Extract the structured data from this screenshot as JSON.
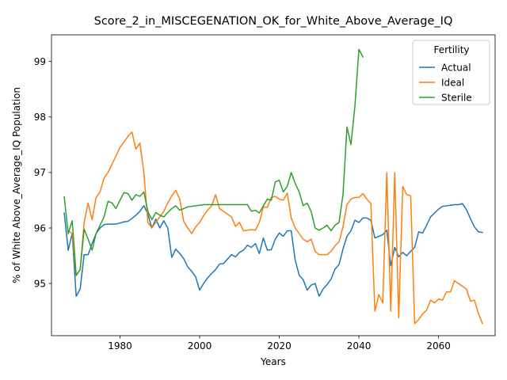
{
  "chart_data": {
    "type": "line",
    "title": "Score_2_in_MISCEGENATION_OK_for_White_Above_Average_IQ",
    "xlabel": "Years",
    "ylabel": "% of White Above_Average_IQ Population",
    "xlim": [
      1962.8,
      2074.2
    ],
    "ylim": [
      94.06,
      99.48
    ],
    "xticks": [
      1980,
      2000,
      2020,
      2040,
      2060
    ],
    "yticks": [
      95,
      96,
      97,
      98,
      99
    ],
    "grid": false,
    "legend": {
      "title": "Fertility",
      "placement": "top-right"
    },
    "series": [
      {
        "name": "Actual",
        "color": "#1f77b4",
        "points": [
          [
            1966,
            96.27
          ],
          [
            1967,
            95.6
          ],
          [
            1968,
            95.9
          ],
          [
            1969,
            94.77
          ],
          [
            1970,
            94.9
          ],
          [
            1971,
            95.52
          ],
          [
            1972,
            95.52
          ],
          [
            1973,
            95.72
          ],
          [
            1974,
            95.9
          ],
          [
            1975,
            96.0
          ],
          [
            1976,
            96.06
          ],
          [
            1977,
            96.07
          ],
          [
            1978,
            96.07
          ],
          [
            1979,
            96.07
          ],
          [
            1980,
            96.09
          ],
          [
            1981,
            96.11
          ],
          [
            1982,
            96.12
          ],
          [
            1983,
            96.17
          ],
          [
            1984,
            96.23
          ],
          [
            1985,
            96.3
          ],
          [
            1986,
            96.4
          ],
          [
            1987,
            96.25
          ],
          [
            1988,
            96.0
          ],
          [
            1989,
            96.16
          ],
          [
            1990,
            96.0
          ],
          [
            1991,
            96.13
          ],
          [
            1992,
            96.0
          ],
          [
            1993,
            95.47
          ],
          [
            1994,
            95.62
          ],
          [
            1995,
            95.54
          ],
          [
            1996,
            95.45
          ],
          [
            1997,
            95.3
          ],
          [
            1998,
            95.22
          ],
          [
            1999,
            95.12
          ],
          [
            2000,
            94.88
          ],
          [
            2001,
            95.0
          ],
          [
            2002,
            95.1
          ],
          [
            2003,
            95.18
          ],
          [
            2004,
            95.25
          ],
          [
            2005,
            95.35
          ],
          [
            2006,
            95.36
          ],
          [
            2007,
            95.44
          ],
          [
            2008,
            95.52
          ],
          [
            2009,
            95.48
          ],
          [
            2010,
            95.56
          ],
          [
            2011,
            95.6
          ],
          [
            2012,
            95.69
          ],
          [
            2013,
            95.65
          ],
          [
            2014,
            95.72
          ],
          [
            2015,
            95.54
          ],
          [
            2016,
            95.82
          ],
          [
            2017,
            95.6
          ],
          [
            2018,
            95.61
          ],
          [
            2019,
            95.8
          ],
          [
            2020,
            95.91
          ],
          [
            2021,
            95.85
          ],
          [
            2022,
            95.95
          ],
          [
            2023,
            95.95
          ],
          [
            2024,
            95.42
          ],
          [
            2025,
            95.15
          ],
          [
            2026,
            95.07
          ],
          [
            2027,
            94.88
          ],
          [
            2028,
            94.97
          ],
          [
            2029,
            95.0
          ],
          [
            2030,
            94.77
          ],
          [
            2031,
            94.9
          ],
          [
            2032,
            94.98
          ],
          [
            2033,
            95.08
          ],
          [
            2034,
            95.26
          ],
          [
            2035,
            95.34
          ],
          [
            2036,
            95.62
          ],
          [
            2037,
            95.85
          ],
          [
            2038,
            95.95
          ],
          [
            2039,
            96.14
          ],
          [
            2040,
            96.1
          ],
          [
            2041,
            96.18
          ],
          [
            2042,
            96.18
          ],
          [
            2043,
            96.14
          ],
          [
            2044,
            95.82
          ],
          [
            2045,
            95.85
          ],
          [
            2046,
            95.88
          ],
          [
            2047,
            95.96
          ],
          [
            2048,
            95.32
          ],
          [
            2049,
            95.65
          ],
          [
            2050,
            95.48
          ],
          [
            2051,
            95.56
          ],
          [
            2052,
            95.5
          ],
          [
            2053,
            95.58
          ],
          [
            2054,
            95.65
          ],
          [
            2055,
            95.93
          ],
          [
            2056,
            95.91
          ],
          [
            2057,
            96.05
          ],
          [
            2058,
            96.2
          ],
          [
            2059,
            96.27
          ],
          [
            2060,
            96.34
          ],
          [
            2061,
            96.39
          ],
          [
            2062,
            96.4
          ],
          [
            2063,
            96.41
          ],
          [
            2064,
            96.42
          ],
          [
            2065,
            96.42
          ],
          [
            2066,
            96.44
          ],
          [
            2067,
            96.33
          ],
          [
            2068,
            96.17
          ],
          [
            2069,
            96.02
          ],
          [
            2070,
            95.93
          ],
          [
            2071,
            95.92
          ]
        ]
      },
      {
        "name": "Ideal",
        "color": "#ff7f0e",
        "points": [
          [
            1967,
            95.95
          ],
          [
            1968,
            95.9
          ],
          [
            1969,
            95.14
          ],
          [
            1970,
            95.25
          ],
          [
            1971,
            96.1
          ],
          [
            1972,
            96.45
          ],
          [
            1973,
            96.15
          ],
          [
            1974,
            96.55
          ],
          [
            1975,
            96.65
          ],
          [
            1976,
            96.9
          ],
          [
            1977,
            97.0
          ],
          [
            1978,
            97.15
          ],
          [
            1979,
            97.3
          ],
          [
            1980,
            97.45
          ],
          [
            1981,
            97.55
          ],
          [
            1982,
            97.65
          ],
          [
            1983,
            97.73
          ],
          [
            1984,
            97.42
          ],
          [
            1985,
            97.53
          ],
          [
            1986,
            97.0
          ],
          [
            1987,
            96.1
          ],
          [
            1988,
            96.0
          ],
          [
            1989,
            96.1
          ],
          [
            1990,
            96.2
          ],
          [
            1991,
            96.3
          ],
          [
            1992,
            96.45
          ],
          [
            1993,
            96.58
          ],
          [
            1994,
            96.68
          ],
          [
            1995,
            96.52
          ],
          [
            1996,
            96.12
          ],
          [
            1997,
            96.0
          ],
          [
            1998,
            95.9
          ],
          [
            1999,
            96.02
          ],
          [
            2000,
            96.1
          ],
          [
            2001,
            96.22
          ],
          [
            2002,
            96.32
          ],
          [
            2003,
            96.4
          ],
          [
            2004,
            96.6
          ],
          [
            2005,
            96.35
          ],
          [
            2006,
            96.3
          ],
          [
            2007,
            96.25
          ],
          [
            2008,
            96.2
          ],
          [
            2009,
            96.03
          ],
          [
            2010,
            96.1
          ],
          [
            2011,
            95.95
          ],
          [
            2012,
            95.96
          ],
          [
            2013,
            95.97
          ],
          [
            2014,
            95.96
          ],
          [
            2015,
            96.1
          ],
          [
            2016,
            96.38
          ],
          [
            2017,
            96.37
          ],
          [
            2018,
            96.55
          ],
          [
            2019,
            96.57
          ],
          [
            2020,
            96.52
          ],
          [
            2021,
            96.5
          ],
          [
            2022,
            96.63
          ],
          [
            2023,
            96.18
          ],
          [
            2024,
            96.0
          ],
          [
            2025,
            95.9
          ],
          [
            2026,
            95.8
          ],
          [
            2027,
            95.75
          ],
          [
            2028,
            95.8
          ],
          [
            2029,
            95.58
          ],
          [
            2030,
            95.52
          ],
          [
            2031,
            95.52
          ],
          [
            2032,
            95.52
          ],
          [
            2033,
            95.58
          ],
          [
            2034,
            95.68
          ],
          [
            2035,
            95.75
          ],
          [
            2036,
            96.02
          ],
          [
            2037,
            96.42
          ],
          [
            2038,
            96.52
          ],
          [
            2039,
            96.55
          ],
          [
            2040,
            96.55
          ],
          [
            2041,
            96.62
          ],
          [
            2042,
            96.52
          ],
          [
            2043,
            96.44
          ],
          [
            2044,
            94.5
          ],
          [
            2045,
            94.8
          ],
          [
            2046,
            94.65
          ],
          [
            2047,
            97.0
          ],
          [
            2048,
            94.5
          ],
          [
            2049,
            97.0
          ],
          [
            2050,
            94.38
          ],
          [
            2051,
            96.75
          ],
          [
            2052,
            96.6
          ],
          [
            2053,
            96.58
          ],
          [
            2054,
            94.28
          ],
          [
            2055,
            94.35
          ],
          [
            2056,
            94.45
          ],
          [
            2057,
            94.52
          ],
          [
            2058,
            94.7
          ],
          [
            2059,
            94.65
          ],
          [
            2060,
            94.72
          ],
          [
            2061,
            94.7
          ],
          [
            2062,
            94.85
          ],
          [
            2063,
            94.85
          ],
          [
            2064,
            95.05
          ],
          [
            2065,
            95.0
          ],
          [
            2066,
            94.95
          ],
          [
            2067,
            94.9
          ],
          [
            2068,
            94.68
          ],
          [
            2069,
            94.7
          ],
          [
            2070,
            94.46
          ],
          [
            2071,
            94.28
          ]
        ]
      },
      {
        "name": "Sterile",
        "color": "#2ca02c",
        "points": [
          [
            1966,
            96.56
          ],
          [
            1967,
            95.9
          ],
          [
            1968,
            96.13
          ],
          [
            1969,
            95.15
          ],
          [
            1970,
            95.25
          ],
          [
            1971,
            95.98
          ],
          [
            1972,
            95.8
          ],
          [
            1973,
            95.6
          ],
          [
            1974,
            95.9
          ],
          [
            1975,
            96.05
          ],
          [
            1976,
            96.2
          ],
          [
            1977,
            96.48
          ],
          [
            1978,
            96.45
          ],
          [
            1979,
            96.35
          ],
          [
            1980,
            96.5
          ],
          [
            1981,
            96.64
          ],
          [
            1982,
            96.62
          ],
          [
            1983,
            96.5
          ],
          [
            1984,
            96.6
          ],
          [
            1985,
            96.57
          ],
          [
            1986,
            96.65
          ],
          [
            1987,
            96.3
          ],
          [
            1988,
            96.15
          ],
          [
            1989,
            96.28
          ],
          [
            1990,
            96.23
          ],
          [
            1991,
            96.2
          ],
          [
            1992,
            96.28
          ],
          [
            1993,
            96.35
          ],
          [
            1994,
            96.4
          ],
          [
            1995,
            96.32
          ],
          [
            1996,
            96.35
          ],
          [
            1997,
            96.38
          ],
          [
            1998,
            96.39
          ],
          [
            1999,
            96.4
          ],
          [
            2000,
            96.41
          ],
          [
            2001,
            96.42
          ],
          [
            2002,
            96.42
          ],
          [
            2003,
            96.42
          ],
          [
            2004,
            96.42
          ],
          [
            2005,
            96.42
          ],
          [
            2006,
            96.42
          ],
          [
            2007,
            96.42
          ],
          [
            2008,
            96.42
          ],
          [
            2009,
            96.42
          ],
          [
            2010,
            96.42
          ],
          [
            2011,
            96.42
          ],
          [
            2012,
            96.42
          ],
          [
            2013,
            96.3
          ],
          [
            2014,
            96.32
          ],
          [
            2015,
            96.27
          ],
          [
            2016,
            96.4
          ],
          [
            2017,
            96.52
          ],
          [
            2018,
            96.5
          ],
          [
            2019,
            96.83
          ],
          [
            2020,
            96.86
          ],
          [
            2021,
            96.65
          ],
          [
            2022,
            96.75
          ],
          [
            2023,
            97.0
          ],
          [
            2024,
            96.8
          ],
          [
            2025,
            96.65
          ],
          [
            2026,
            96.4
          ],
          [
            2027,
            96.45
          ],
          [
            2028,
            96.3
          ],
          [
            2029,
            96.0
          ],
          [
            2030,
            95.96
          ],
          [
            2031,
            96.0
          ],
          [
            2032,
            96.05
          ],
          [
            2033,
            95.95
          ],
          [
            2034,
            96.05
          ],
          [
            2035,
            96.1
          ],
          [
            2036,
            96.6
          ],
          [
            2037,
            97.82
          ],
          [
            2038,
            97.5
          ],
          [
            2039,
            98.2
          ],
          [
            2040,
            99.22
          ],
          [
            2041,
            99.08
          ]
        ]
      }
    ]
  }
}
